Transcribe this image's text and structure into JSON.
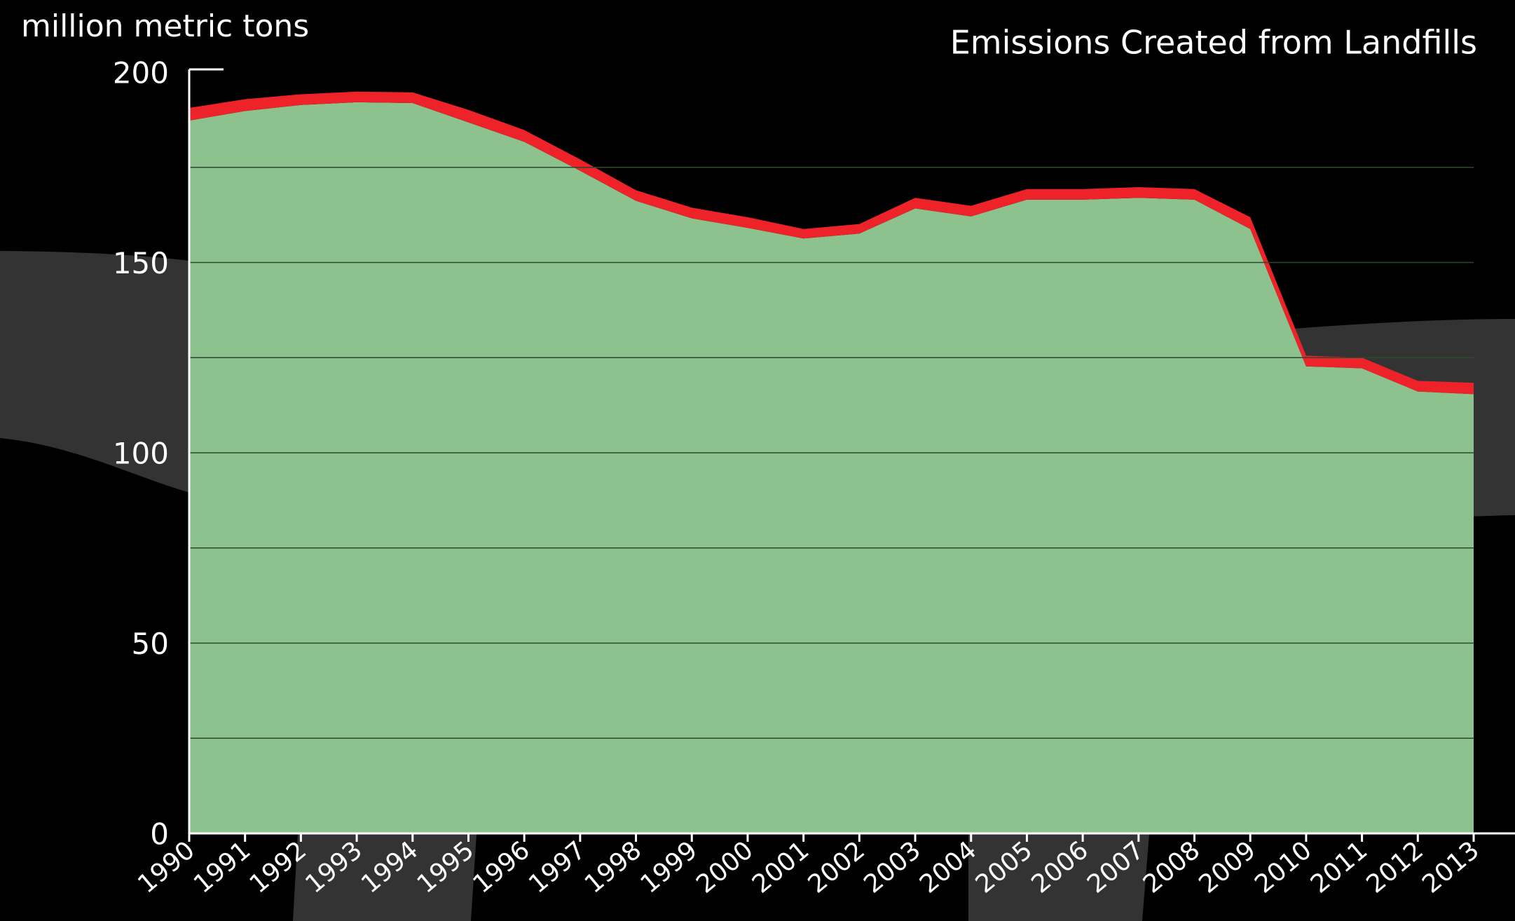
{
  "chart_data": {
    "type": "stacked_area",
    "title": "Emissions Created from Landfills",
    "y_label": "million metric tons",
    "x": [
      1990,
      1991,
      1992,
      1993,
      1994,
      1995,
      1996,
      1997,
      1998,
      1999,
      2000,
      2001,
      2002,
      2003,
      2004,
      2005,
      2006,
      2007,
      2008,
      2009,
      2010,
      2011,
      2012,
      2013
    ],
    "xlim": [
      1990,
      2013
    ],
    "series": [
      {
        "color": "#8dc28f",
        "values": [
          187.3,
          189.8,
          191.4,
          192.1,
          191.9,
          186.8,
          181.7,
          174.1,
          166.2,
          161.6,
          159.1,
          156.3,
          157.6,
          164.2,
          162.1,
          166.5,
          166.5,
          167.0,
          166.5,
          158.8,
          122.7,
          122.2,
          116.1,
          115.4
        ]
      },
      {
        "color": "#ee2229",
        "values": [
          3.3,
          3.1,
          2.8,
          2.8,
          2.8,
          3.3,
          3.1,
          3.0,
          2.8,
          2.8,
          2.8,
          2.5,
          2.5,
          2.8,
          2.8,
          2.8,
          2.8,
          2.8,
          2.8,
          3.1,
          2.8,
          2.8,
          2.8,
          3.0
        ]
      }
    ],
    "ylim": [
      0,
      200
    ],
    "yticks": [
      0,
      50,
      100,
      150,
      200
    ],
    "minor_yticks": [
      25,
      75,
      125,
      175
    ],
    "grid": true
  }
}
